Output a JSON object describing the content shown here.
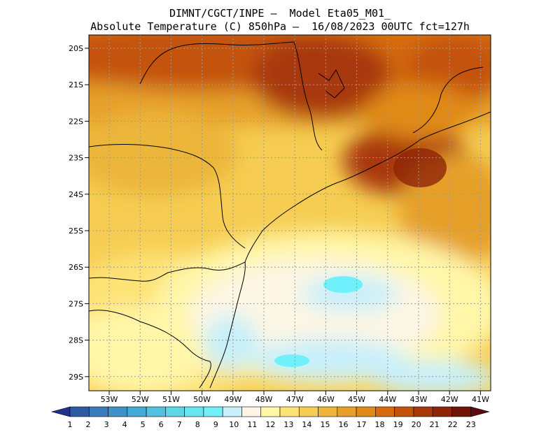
{
  "title": {
    "line1": "DIMNT/CGCT/INPE –  Model Eta05_M01_",
    "line2": "Absolute Temperature (C) 850hPa –  16/08/2023 00UTC fct=127h"
  },
  "lat_labels": [
    "20S",
    "21S",
    "22S",
    "23S",
    "24S",
    "25S",
    "26S",
    "27S",
    "28S",
    "29S"
  ],
  "lon_labels": [
    "53W",
    "52W",
    "51W",
    "50W",
    "49W",
    "48W",
    "47W",
    "46W",
    "45W",
    "44W",
    "43W",
    "42W",
    "41W"
  ],
  "colorbar": {
    "labels": [
      "1",
      "2",
      "3",
      "4",
      "5",
      "6",
      "7",
      "8",
      "9",
      "10",
      "11",
      "12",
      "13",
      "14",
      "15",
      "16",
      "17",
      "18",
      "19",
      "20",
      "21",
      "22",
      "23"
    ],
    "colors": [
      "#21318c",
      "#2c5ba3",
      "#3a7bbb",
      "#3f92c8",
      "#43a9d5",
      "#52c1e0",
      "#5dd6e8",
      "#68e6ef",
      "#6ff0fa",
      "#c8f0fa",
      "#fdf6e4",
      "#fff6a8",
      "#fde276",
      "#f6cd52",
      "#ecb63a",
      "#e6a02a",
      "#e08a18",
      "#d66a10",
      "#c4520d",
      "#a8380a",
      "#8f2408",
      "#701408",
      "#5a0a10"
    ]
  },
  "colors": {
    "frame": "#000000",
    "grid": "#9a9a9a",
    "coast": "#000000"
  }
}
